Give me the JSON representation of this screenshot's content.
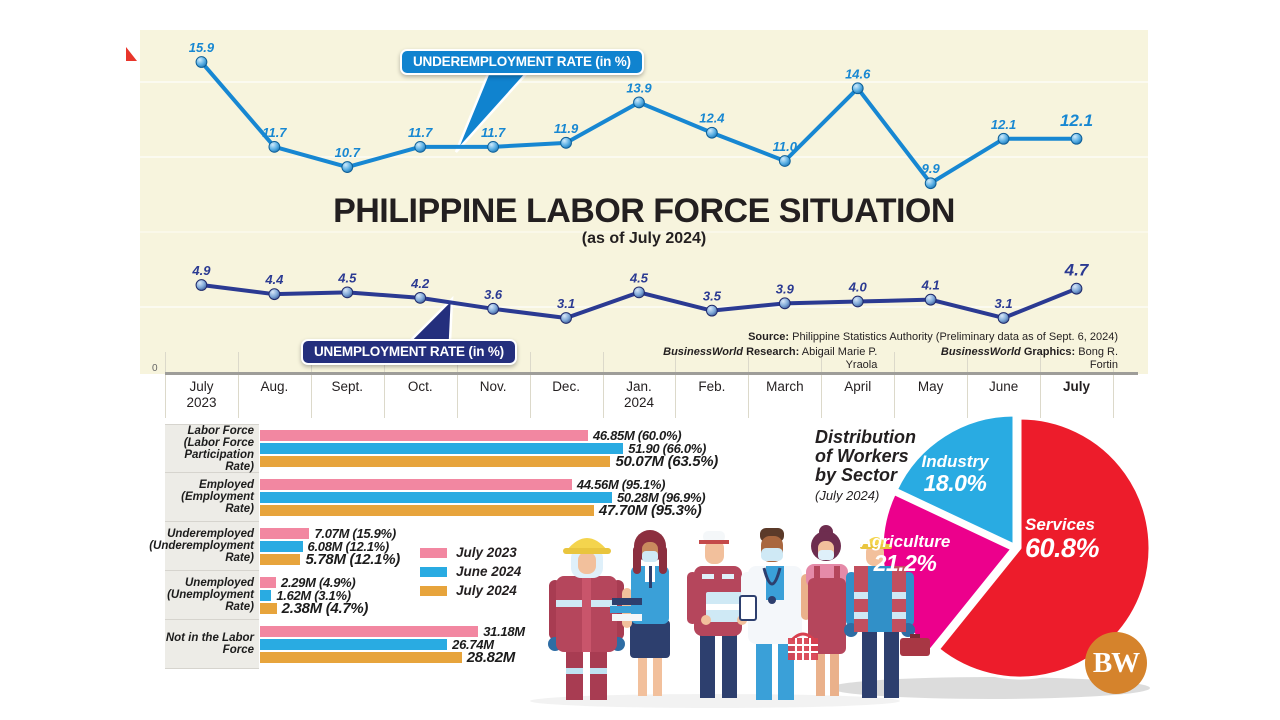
{
  "page": {
    "title": "PHILIPPINE LABOR FORCE SITUATION",
    "subtitle": "(as of July 2024)",
    "logo_text": "BW"
  },
  "source": {
    "label": "Source:",
    "text": "Philippine Statistics Authority (Preliminary data as of Sept. 6, 2024)",
    "research_brand": "BusinessWorld",
    "research_label": "Research:",
    "research_name": "Abigail Marie P. Yraola",
    "graphics_brand": "BusinessWorld",
    "graphics_label": "Graphics:",
    "graphics_name": "Bong R. Fortin"
  },
  "axis": {
    "zero_label": "0",
    "months": [
      {
        "l1": "July",
        "l2": "2023"
      },
      {
        "l1": "Aug."
      },
      {
        "l1": "Sept."
      },
      {
        "l1": "Oct."
      },
      {
        "l1": "Nov."
      },
      {
        "l1": "Dec."
      },
      {
        "l1": "Jan.",
        "l2": "2024"
      },
      {
        "l1": "Feb."
      },
      {
        "l1": "March"
      },
      {
        "l1": "April"
      },
      {
        "l1": "May"
      },
      {
        "l1": "June"
      },
      {
        "l1": "July"
      }
    ]
  },
  "legend": [
    {
      "label": "July 2023",
      "color": "#f287a1"
    },
    {
      "label": "June 2024",
      "color": "#29abe2"
    },
    {
      "label": "July 2024",
      "color": "#e7a43c"
    }
  ],
  "chart_data": [
    {
      "type": "line",
      "name": "underemployment-rate",
      "title": "UNDEREMPLOYMENT RATE (in %)",
      "x": [
        "July 2023",
        "Aug.",
        "Sept.",
        "Oct.",
        "Nov.",
        "Dec.",
        "Jan. 2024",
        "Feb.",
        "March",
        "April",
        "May",
        "June",
        "July"
      ],
      "values": [
        15.9,
        11.7,
        10.7,
        11.7,
        11.7,
        11.9,
        13.9,
        12.4,
        11.0,
        14.6,
        9.9,
        12.1,
        12.1
      ],
      "color": "#1787d2"
    },
    {
      "type": "line",
      "name": "unemployment-rate",
      "title": "UNEMPLOYMENT RATE (in %)",
      "x": [
        "July 2023",
        "Aug.",
        "Sept.",
        "Oct.",
        "Nov.",
        "Dec.",
        "Jan. 2024",
        "Feb.",
        "March",
        "April",
        "May",
        "June",
        "July"
      ],
      "values": [
        4.9,
        4.4,
        4.5,
        4.2,
        3.6,
        3.1,
        4.5,
        3.5,
        3.9,
        4.0,
        4.1,
        3.1,
        4.7
      ],
      "color": "#2b3a92"
    },
    {
      "type": "bar",
      "name": "labor-force-indicators",
      "unit": "millions of persons",
      "series": [
        "July 2023",
        "June 2024",
        "July 2024"
      ],
      "series_colors": [
        "#f287a1",
        "#29abe2",
        "#e7a43c"
      ],
      "rows": [
        {
          "label": "Labor Force (Labor Force Participation Rate)",
          "label_lines": [
            "Labor Force",
            "(Labor Force",
            "Participation Rate)"
          ],
          "values_m": [
            46.85,
            51.9,
            50.07
          ],
          "display": [
            "46.85M (60.0%)",
            "51.90 (66.0%)",
            "50.07M (63.5%)"
          ]
        },
        {
          "label": "Employed (Employment Rate)",
          "label_lines": [
            "Employed",
            "(Employment Rate)"
          ],
          "values_m": [
            44.56,
            50.28,
            47.7
          ],
          "display": [
            "44.56M (95.1%)",
            "50.28M (96.9%)",
            "47.70M (95.3%)"
          ]
        },
        {
          "label": "Underemployed (Underemployment Rate)",
          "label_lines": [
            "Underemployed",
            "(Underemployment",
            "Rate)"
          ],
          "values_m": [
            7.07,
            6.08,
            5.78
          ],
          "display": [
            "7.07M (15.9%)",
            "6.08M (12.1%)",
            "5.78M (12.1%)"
          ]
        },
        {
          "label": "Unemployed (Unemployment Rate)",
          "label_lines": [
            "Unemployed",
            "(Unemployment Rate)"
          ],
          "values_m": [
            2.29,
            1.62,
            2.38
          ],
          "display": [
            "2.29M (4.9%)",
            "1.62M (3.1%)",
            "2.38M (4.7%)"
          ]
        },
        {
          "label": "Not in the Labor Force",
          "label_lines": [
            "Not in the Labor Force"
          ],
          "values_m": [
            31.18,
            26.74,
            28.82
          ],
          "display": [
            "31.18M",
            "26.74M",
            "28.82M"
          ]
        }
      ]
    },
    {
      "type": "pie",
      "name": "workers-by-sector",
      "title_lines": [
        "Distribution",
        "of Workers",
        "by Sector"
      ],
      "subtitle": "(July 2024)",
      "slices": [
        {
          "label": "Services",
          "value": 60.8,
          "display": "60.8%",
          "color": "#ed1c2b"
        },
        {
          "label": "Agriculture",
          "value": 21.2,
          "display": "21.2%",
          "color": "#ec008c"
        },
        {
          "label": "Industry",
          "value": 18.0,
          "display": "18.0%",
          "color": "#29abe2"
        }
      ]
    }
  ]
}
